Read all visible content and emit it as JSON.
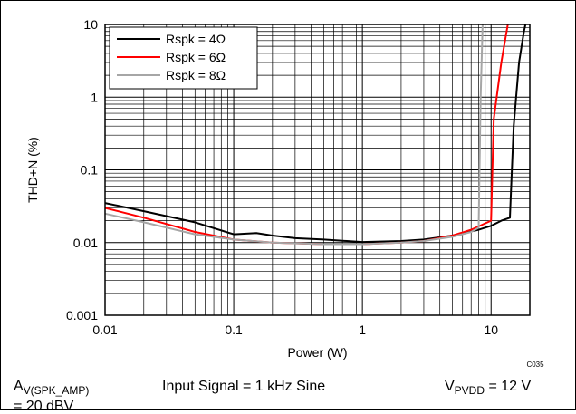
{
  "chart_data": {
    "type": "line",
    "xlabel": "Power (W)",
    "ylabel": "THD+N (%)",
    "x_scale": "log",
    "y_scale": "log",
    "xlim": [
      0.01,
      20
    ],
    "ylim": [
      0.001,
      10
    ],
    "x_tick_labels": [
      {
        "value": 0.01,
        "label": "0.01"
      },
      {
        "value": 0.1,
        "label": "0.1"
      },
      {
        "value": 1,
        "label": "1"
      },
      {
        "value": 10,
        "label": "10"
      }
    ],
    "y_tick_labels": [
      {
        "value": 0.001,
        "label": "0.001"
      },
      {
        "value": 0.01,
        "label": "0.01"
      },
      {
        "value": 0.1,
        "label": "0.1"
      },
      {
        "value": 1,
        "label": "1"
      },
      {
        "value": 10,
        "label": "10"
      }
    ],
    "grid": true,
    "legend_position": "top-left",
    "corner_code": "C035",
    "series": [
      {
        "name": "Rspk = 4Ω",
        "color": "#000000",
        "points": [
          [
            0.01,
            0.035
          ],
          [
            0.02,
            0.027
          ],
          [
            0.05,
            0.019
          ],
          [
            0.1,
            0.013
          ],
          [
            0.15,
            0.0135
          ],
          [
            0.2,
            0.0125
          ],
          [
            0.3,
            0.0115
          ],
          [
            0.5,
            0.011
          ],
          [
            1,
            0.0102
          ],
          [
            2,
            0.0105
          ],
          [
            3,
            0.011
          ],
          [
            5,
            0.0125
          ],
          [
            8,
            0.015
          ],
          [
            10,
            0.017
          ],
          [
            12,
            0.02
          ],
          [
            14,
            0.022
          ],
          [
            15,
            0.4
          ],
          [
            16.5,
            3
          ],
          [
            18,
            8
          ],
          [
            18.5,
            10
          ]
        ]
      },
      {
        "name": "Rspk = 6Ω",
        "color": "#ff0000",
        "points": [
          [
            0.01,
            0.03
          ],
          [
            0.02,
            0.022
          ],
          [
            0.05,
            0.014
          ],
          [
            0.1,
            0.011
          ],
          [
            0.2,
            0.01
          ],
          [
            0.5,
            0.0095
          ],
          [
            1,
            0.0095
          ],
          [
            2,
            0.01
          ],
          [
            3,
            0.0105
          ],
          [
            5,
            0.0125
          ],
          [
            7,
            0.015
          ],
          [
            10,
            0.02
          ],
          [
            10.5,
            0.5
          ],
          [
            12,
            3
          ],
          [
            13.5,
            10
          ]
        ]
      },
      {
        "name": "Rspk = 8Ω",
        "color": "#a6a6a6",
        "points": [
          [
            0.01,
            0.025
          ],
          [
            0.02,
            0.019
          ],
          [
            0.05,
            0.013
          ],
          [
            0.1,
            0.011
          ],
          [
            0.2,
            0.01
          ],
          [
            0.5,
            0.0095
          ],
          [
            1,
            0.0095
          ],
          [
            2,
            0.01
          ],
          [
            3,
            0.0105
          ],
          [
            5,
            0.012
          ],
          [
            7,
            0.014
          ],
          [
            8,
            0.016
          ],
          [
            8.3,
            1
          ],
          [
            8.6,
            10
          ]
        ]
      }
    ]
  },
  "footer": {
    "gain_label": "A",
    "gain_subscript": "V(SPK_AMP)",
    "gain_value": "= 20 dBV",
    "input_signal": "Input Signal = 1 kHz Sine",
    "supply_label": "V",
    "supply_subscript": "PVDD",
    "supply_value": "= 12 V"
  }
}
